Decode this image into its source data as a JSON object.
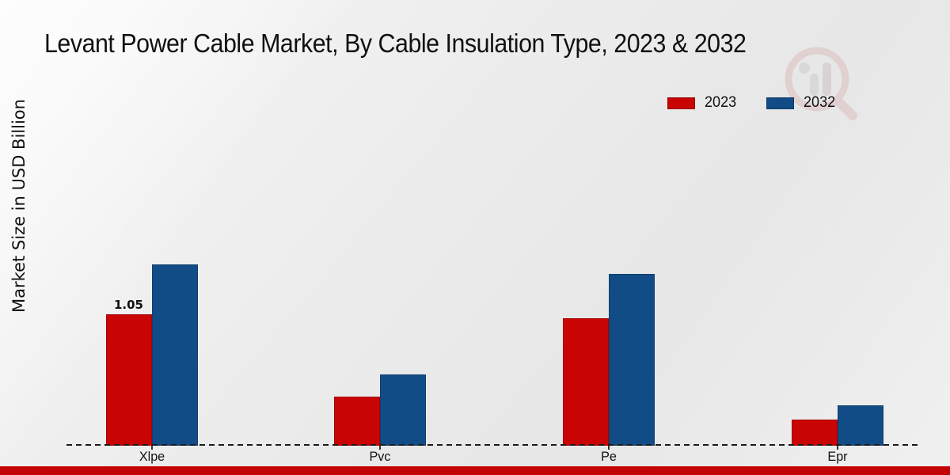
{
  "header": {
    "title": "Levant Power Cable Market, By Cable Insulation Type, 2023 & 2032"
  },
  "axes": {
    "ylabel": "Market Size in USD Billion"
  },
  "colors": {
    "series_2023": "#c90404",
    "series_2032": "#124c87",
    "footer_bar": "#c40404",
    "baseline": "#1a1a1a",
    "background": "#ebebeb"
  },
  "watermark_icon": "magnifier-bar-chart-logo-icon",
  "chart_data": {
    "type": "bar",
    "title": "Levant Power Cable Market, By Cable Insulation Type, 2023 & 2032",
    "categories": [
      "Xlpe",
      "Pvc",
      "Pe",
      "Epr"
    ],
    "series": [
      {
        "name": "2023",
        "color": "#c90404",
        "values": [
          1.05,
          0.39,
          1.02,
          0.21
        ]
      },
      {
        "name": "2032",
        "color": "#124c87",
        "values": [
          1.45,
          0.57,
          1.37,
          0.32
        ]
      }
    ],
    "data_labels": [
      {
        "series": "2023",
        "category": "Xlpe",
        "text": "1.05"
      }
    ],
    "xlabel": "",
    "ylabel": "Market Size in USD Billion",
    "ylim": [
      0,
      1.6
    ],
    "grid": false,
    "legend_position": "top-right",
    "baseline_style": "dashed"
  }
}
